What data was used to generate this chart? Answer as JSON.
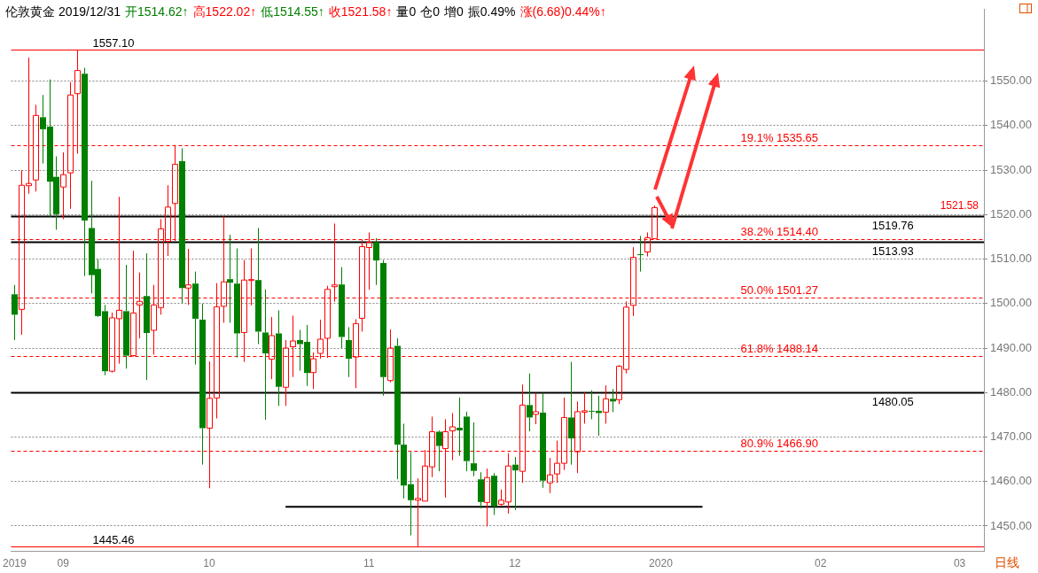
{
  "chart_data": {
    "type": "candlestick",
    "title": "伦敦黄金 2019/12/31",
    "annotations": [
      "开1514.62↑",
      "高1522.02↑",
      "低1514.55↑",
      "收1521.58↑",
      "量0",
      "仓0",
      "增0",
      "振0.49%",
      "涨(6.68)0.44%↑",
      "日线",
      "1521.58"
    ],
    "categories": [
      "2019",
      null,
      null,
      null,
      null,
      null,
      null,
      "09",
      null,
      null,
      null,
      null,
      null,
      null,
      null,
      null,
      null,
      null,
      null,
      null,
      null,
      null,
      null,
      null,
      null,
      null,
      null,
      null,
      "10",
      null,
      null,
      null,
      null,
      null,
      null,
      null,
      null,
      null,
      null,
      null,
      null,
      null,
      null,
      null,
      null,
      null,
      null,
      null,
      null,
      null,
      null,
      "11",
      null,
      null,
      null,
      null,
      null,
      null,
      null,
      null,
      null,
      null,
      null,
      null,
      null,
      null,
      null,
      null,
      null,
      null,
      null,
      null,
      "12",
      null,
      null,
      null,
      null,
      null,
      null,
      null,
      null,
      null,
      null,
      null,
      null,
      null,
      null,
      null,
      null,
      null,
      null,
      null,
      null,
      "2020",
      null,
      null,
      null,
      null,
      null,
      null,
      null,
      null,
      null,
      null,
      null,
      null,
      null,
      null,
      null,
      null,
      null,
      null,
      null,
      null,
      null,
      null,
      "02",
      null,
      null,
      null,
      null,
      null,
      null,
      null,
      null,
      null,
      null,
      null,
      null,
      null,
      null,
      null,
      null,
      null,
      null,
      null,
      "03",
      null,
      null,
      null
    ],
    "ohlc": [
      [
        1502.1,
        1504.2,
        1491.8,
        1497.5
      ],
      [
        1498.7,
        1530,
        1493,
        1526.6
      ],
      [
        1526.5,
        1555.3,
        1524.7,
        1527
      ],
      [
        1527.8,
        1544.7,
        1525.2,
        1542.3
      ],
      [
        1541.9,
        1546.9,
        1531.5,
        1539.2
      ],
      [
        1539.8,
        1550.4,
        1519.4,
        1527.4
      ],
      [
        1528.5,
        1533.1,
        1516.6,
        1520.1
      ],
      [
        1526.2,
        1534,
        1519,
        1529
      ],
      [
        1529.4,
        1549.8,
        1521.3,
        1546.9
      ],
      [
        1547.2,
        1557.1,
        1533.7,
        1552.4
      ],
      [
        1551.7,
        1553,
        1506.2,
        1518.7
      ],
      [
        1517,
        1527.6,
        1502.3,
        1506.4
      ],
      [
        1507.8,
        1510,
        1497,
        1497.2
      ],
      [
        1498.3,
        1499.7,
        1483.9,
        1484.8
      ],
      [
        1484.8,
        1498,
        1484.5,
        1496.8
      ],
      [
        1496.6,
        1524,
        1486.5,
        1498.5
      ],
      [
        1498.3,
        1508.7,
        1485.4,
        1488.3
      ],
      [
        1488.3,
        1511.9,
        1488.1,
        1497.9
      ],
      [
        1499.7,
        1507,
        1492.2,
        1500.5
      ],
      [
        1501.7,
        1511.3,
        1482.8,
        1493.4
      ],
      [
        1494,
        1504.2,
        1488.5,
        1499.7
      ],
      [
        1499.1,
        1519,
        1497.5,
        1516.8
      ],
      [
        1514,
        1526.6,
        1510.7,
        1521.7
      ],
      [
        1522.5,
        1535.65,
        1514.1,
        1531.3
      ],
      [
        1532,
        1534.9,
        1500.1,
        1503.5
      ],
      [
        1503.5,
        1512.3,
        1499.7,
        1504.2
      ],
      [
        1504.5,
        1507.2,
        1486.3,
        1496.6
      ],
      [
        1496.4,
        1500,
        1463.8,
        1472
      ],
      [
        1472,
        1487,
        1458.5,
        1478.7
      ],
      [
        1478.8,
        1504.6,
        1474.2,
        1499.3
      ],
      [
        1499.4,
        1519.6,
        1495.7,
        1504.9
      ],
      [
        1505.5,
        1515.5,
        1495.7,
        1504.7
      ],
      [
        1504.5,
        1512.4,
        1487.9,
        1493.3
      ],
      [
        1493.5,
        1509.8,
        1486.9,
        1505.3
      ],
      [
        1505.2,
        1512.4,
        1499.6,
        1505.4
      ],
      [
        1505.3,
        1517,
        1490.9,
        1493.7
      ],
      [
        1493.5,
        1503.2,
        1473.9,
        1488.8
      ],
      [
        1487.5,
        1497,
        1483,
        1492.8
      ],
      [
        1493.3,
        1498.5,
        1477,
        1481.3
      ],
      [
        1481.2,
        1491.8,
        1477,
        1490
      ],
      [
        1490.3,
        1497.3,
        1483.5,
        1491.6
      ],
      [
        1491.8,
        1494.1,
        1484.9,
        1490.9
      ],
      [
        1491.4,
        1495.2,
        1481.5,
        1484.4
      ],
      [
        1484.5,
        1489,
        1480.8,
        1487.6
      ],
      [
        1488.8,
        1496.4,
        1487.6,
        1492
      ],
      [
        1492.2,
        1504,
        1487.8,
        1503.2
      ],
      [
        1503.8,
        1518,
        1500.4,
        1504.2
      ],
      [
        1504.3,
        1508.2,
        1490,
        1492.5
      ],
      [
        1491.8,
        1494.7,
        1483.5,
        1487.6
      ],
      [
        1488,
        1496.5,
        1481,
        1495.5
      ],
      [
        1496.7,
        1514.4,
        1493.7,
        1512.8
      ],
      [
        1512.6,
        1516,
        1503.1,
        1513.8
      ],
      [
        1513.8,
        1514.7,
        1504.2,
        1509.7
      ],
      [
        1509.1,
        1509.8,
        1479.3,
        1483.5
      ],
      [
        1482.7,
        1494.2,
        1482.3,
        1490
      ],
      [
        1490.5,
        1492.2,
        1460.5,
        1468.3
      ],
      [
        1468.3,
        1473,
        1456.2,
        1459.1
      ],
      [
        1459.4,
        1466.6,
        1447.9,
        1455.8
      ],
      [
        1455.8,
        1460.7,
        1445.46,
        1456.2
      ],
      [
        1455.6,
        1467.1,
        1455.6,
        1463.5
      ],
      [
        1463.3,
        1474.6,
        1461,
        1471.2
      ],
      [
        1471.2,
        1471.5,
        1462.3,
        1468
      ],
      [
        1467.4,
        1474,
        1456.4,
        1471.2
      ],
      [
        1471.4,
        1475.4,
        1464.8,
        1472.3
      ],
      [
        1472.1,
        1478.9,
        1465.8,
        1471.5
      ],
      [
        1474.6,
        1475.7,
        1462.3,
        1464.6
      ],
      [
        1464.1,
        1473.3,
        1461.2,
        1462.4
      ],
      [
        1460.5,
        1462.1,
        1454,
        1455.4
      ],
      [
        1455.3,
        1462.9,
        1449.9,
        1460.9
      ],
      [
        1461.3,
        1461.9,
        1452.5,
        1454.5
      ],
      [
        1454.9,
        1458.2,
        1454.5,
        1455.8
      ],
      [
        1455.4,
        1466.4,
        1452.8,
        1463.5
      ],
      [
        1463.8,
        1465.5,
        1453.6,
        1462.5
      ],
      [
        1462.3,
        1481.8,
        1459.7,
        1477.2
      ],
      [
        1477.2,
        1484.3,
        1471.3,
        1474.4
      ],
      [
        1475.1,
        1479.9,
        1472.9,
        1475.7
      ],
      [
        1475.5,
        1479.9,
        1458.6,
        1460.2
      ],
      [
        1459.7,
        1465.3,
        1457.4,
        1461.5
      ],
      [
        1461.7,
        1469.2,
        1459.7,
        1464.1
      ],
      [
        1464.1,
        1478.9,
        1462.6,
        1474.4
      ],
      [
        1474.4,
        1486.9,
        1463.8,
        1469.7
      ],
      [
        1466.7,
        1478,
        1461.9,
        1475.7
      ],
      [
        1475.6,
        1480,
        1473,
        1475.9
      ],
      [
        1475.9,
        1480.5,
        1474,
        1475.7
      ],
      [
        1475.9,
        1479.3,
        1470.3,
        1475.4
      ],
      [
        1475.6,
        1481.6,
        1473,
        1478.6
      ],
      [
        1478.6,
        1480.8,
        1475.6,
        1478
      ],
      [
        1478.4,
        1486.2,
        1477.4,
        1485.9
      ],
      [
        1485.2,
        1500.5,
        1484.3,
        1499.2
      ],
      [
        1499.6,
        1512.7,
        1497.2,
        1510.4
      ],
      [
        1511.1,
        1515.2,
        1507.2,
        1511
      ],
      [
        1511.6,
        1516,
        1510.6,
        1514.8
      ],
      [
        1514.62,
        1522.02,
        1514.55,
        1521.58
      ],
      null,
      null,
      null,
      null,
      null,
      null,
      null,
      null,
      null,
      null,
      null,
      null,
      null,
      null,
      null,
      null,
      null,
      null,
      null,
      null,
      null,
      null,
      null,
      null,
      null,
      null,
      null,
      null,
      null,
      null,
      null,
      null,
      null,
      null,
      null,
      null,
      null,
      null,
      null,
      null,
      null,
      null,
      null,
      null,
      null,
      null,
      null
    ],
    "series": [
      {
        "type": "line",
        "color": "#000000",
        "values": [
          null,
          null,
          null,
          null,
          null,
          null,
          null,
          null,
          null,
          null,
          null,
          null,
          null,
          null,
          null,
          null,
          null,
          null,
          null,
          null,
          null,
          null,
          null,
          null,
          null,
          null,
          null,
          null,
          null,
          null,
          null,
          null,
          null,
          null,
          null,
          null,
          null,
          null,
          null,
          1454.3,
          null,
          null,
          null,
          null,
          null,
          null,
          null,
          null,
          null,
          null,
          null,
          null,
          null,
          null,
          null,
          null,
          null,
          null,
          null,
          null,
          null,
          null,
          null,
          null,
          null,
          null,
          null,
          null,
          null,
          null,
          null,
          null,
          null,
          null,
          null,
          null,
          null,
          null,
          null,
          null,
          null,
          null,
          null,
          null,
          null,
          null,
          null,
          null,
          null,
          null,
          null,
          null,
          null,
          null,
          null,
          null,
          null,
          null,
          null,
          1454.3,
          null,
          null,
          null,
          null,
          null,
          null,
          null,
          null,
          null,
          null,
          null,
          null,
          null,
          null,
          null,
          null,
          null,
          null,
          null,
          null,
          null,
          null,
          null,
          null,
          null,
          null,
          null,
          null,
          null,
          null,
          null,
          null,
          null,
          null,
          null,
          null,
          null,
          null,
          null,
          null
        ]
      }
    ],
    "ref_lines": [
      {
        "axis": "y",
        "value": 1557.1,
        "label": "1557.10",
        "color": "#ff0000"
      },
      {
        "axis": "y",
        "value": 1535.65,
        "label": "19.1% 1535.65",
        "color": "#ff0000",
        "line_style": "dashed"
      },
      {
        "axis": "y",
        "value": 1519.76,
        "label": "1519.76",
        "color": "#000000"
      },
      {
        "axis": "y",
        "value": 1514.4,
        "label": "38.2% 1514.40",
        "color": "#ff0000",
        "line_style": "dashed"
      },
      {
        "axis": "y",
        "value": 1513.93,
        "label": "1513.93",
        "color": "#000000"
      },
      {
        "axis": "y",
        "value": 1501.27,
        "label": "50.0% 1501.27",
        "color": "#ff0000",
        "line_style": "dashed"
      },
      {
        "axis": "y",
        "value": 1488.14,
        "label": "61.8% 1488.14",
        "color": "#ff0000",
        "line_style": "dashed"
      },
      {
        "axis": "y",
        "value": 1480.05,
        "label": "1480.05",
        "color": "#000000"
      },
      {
        "axis": "y",
        "value": 1466.9,
        "label": "80.9% 1466.90",
        "color": "#ff0000",
        "line_style": "dashed"
      },
      {
        "axis": "y",
        "value": 1445.46,
        "label": "1445.46",
        "color": "#ff0000"
      }
    ],
    "ylim": [
      1444.3,
      1566.1
    ],
    "yticks": [
      {
        "value": 1450,
        "label": "1450.00"
      },
      {
        "value": 1460,
        "label": "1460.00"
      },
      {
        "value": 1470,
        "label": "1470.00"
      },
      {
        "value": 1480,
        "label": "1480.00"
      },
      {
        "value": 1490,
        "label": "1490.00"
      },
      {
        "value": 1500,
        "label": "1500.00"
      },
      {
        "value": 1510,
        "label": "1510.00"
      },
      {
        "value": 1520,
        "label": "1520.00"
      },
      {
        "value": 1530,
        "label": "1530.00"
      },
      {
        "value": 1540,
        "label": "1540.00"
      },
      {
        "value": 1550,
        "label": "1550.00"
      }
    ],
    "grid": "y",
    "legend": false
  }
}
